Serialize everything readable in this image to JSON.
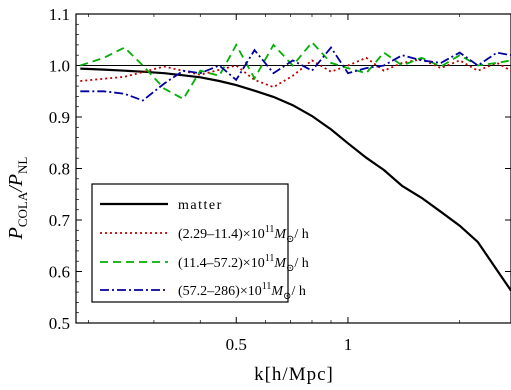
{
  "chart_data": {
    "type": "line",
    "xlabel": "k[h/Mpc]",
    "ylabel_main": "P",
    "ylabel_sub1": "COLA",
    "ylabel_mid": "/P",
    "ylabel_sub2": "NL",
    "x_scale": "log",
    "xlim": [
      0.185,
      2.75
    ],
    "ylim": [
      0.5,
      1.1
    ],
    "x_ticks": [
      0.5,
      1
    ],
    "x_tick_labels": [
      "0.5",
      "1"
    ],
    "y_ticks": [
      0.5,
      0.6,
      0.7,
      0.8,
      0.9,
      1.0,
      1.1
    ],
    "y_tick_labels": [
      "0.5",
      "0.6",
      "0.7",
      "0.8",
      "0.9",
      "1.0",
      "1.1"
    ],
    "reference_line": 1.0,
    "legend_position": "lower-left",
    "series": [
      {
        "name": "matter",
        "color": "#000000",
        "style": "solid",
        "x": [
          0.19,
          0.22,
          0.25,
          0.28,
          0.32,
          0.36,
          0.4,
          0.45,
          0.5,
          0.56,
          0.63,
          0.71,
          0.8,
          0.9,
          1.0,
          1.12,
          1.25,
          1.4,
          1.58,
          1.78,
          2.0,
          2.24,
          2.52,
          2.75
        ],
        "y": [
          0.994,
          0.992,
          0.99,
          0.988,
          0.985,
          0.981,
          0.977,
          0.97,
          0.962,
          0.951,
          0.939,
          0.923,
          0.902,
          0.876,
          0.849,
          0.821,
          0.797,
          0.766,
          0.743,
          0.716,
          0.689,
          0.657,
          0.603,
          0.563
        ]
      },
      {
        "name_prefix": "(2.29–11.4)×10",
        "name_exp": "11",
        "name_mass": "M",
        "name_suffix": "/ h",
        "color": "#c00000",
        "style": "dotted",
        "x": [
          0.19,
          0.25,
          0.32,
          0.4,
          0.5,
          0.56,
          0.63,
          0.71,
          0.8,
          0.9,
          1.0,
          1.12,
          1.25,
          1.4,
          1.58,
          1.78,
          2.0,
          2.24,
          2.52,
          2.75
        ],
        "y": [
          0.97,
          0.978,
          0.998,
          0.982,
          1.0,
          0.972,
          0.958,
          0.98,
          1.01,
          0.988,
          1.0,
          1.015,
          0.99,
          1.005,
          1.012,
          0.995,
          1.01,
          0.99,
          1.005,
          0.99
        ]
      },
      {
        "name_prefix": "(11.4–57.2)×10",
        "name_exp": "11",
        "name_mass": "M",
        "name_suffix": "/ h",
        "color": "#00b000",
        "style": "dashed",
        "x": [
          0.19,
          0.22,
          0.25,
          0.28,
          0.32,
          0.36,
          0.4,
          0.45,
          0.5,
          0.56,
          0.63,
          0.71,
          0.8,
          0.9,
          1.0,
          1.12,
          1.25,
          1.4,
          1.58,
          1.78,
          2.0,
          2.24,
          2.52,
          2.75
        ],
        "y": [
          1.0,
          1.015,
          1.035,
          1.0,
          0.955,
          0.935,
          0.99,
          0.98,
          1.04,
          0.975,
          1.04,
          1.0,
          1.045,
          1.005,
          0.995,
          0.985,
          1.025,
          1.0,
          1.015,
          0.998,
          1.02,
          1.0,
          1.005,
          1.01
        ]
      },
      {
        "name_prefix": "(57.2–286)×10",
        "name_exp": "11",
        "name_mass": "M",
        "name_suffix": "/ h",
        "color": "#0000a0",
        "style": "dashdot",
        "x": [
          0.19,
          0.22,
          0.25,
          0.28,
          0.32,
          0.36,
          0.4,
          0.45,
          0.5,
          0.56,
          0.63,
          0.71,
          0.8,
          0.9,
          1.0,
          1.12,
          1.25,
          1.4,
          1.58,
          1.78,
          2.0,
          2.24,
          2.52,
          2.75
        ],
        "y": [
          0.95,
          0.95,
          0.945,
          0.932,
          0.965,
          0.99,
          0.985,
          1.0,
          0.972,
          1.03,
          0.985,
          1.01,
          0.99,
          1.035,
          0.985,
          0.995,
          1.0,
          1.02,
          1.01,
          1.005,
          1.025,
          1.0,
          1.025,
          1.02
        ]
      }
    ]
  }
}
